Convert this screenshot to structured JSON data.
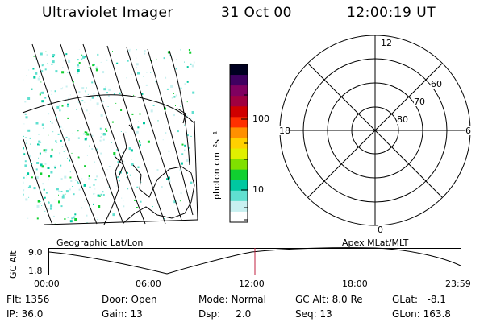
{
  "header": {
    "title": "Ultraviolet Imager",
    "date": "31 Oct 00",
    "time": "12:00:19 UT"
  },
  "colorbar": {
    "unit_label": "photon cm⁻²s⁻¹",
    "ticks": [
      {
        "label": "100",
        "value": 100
      },
      {
        "label": "10",
        "value": 10
      }
    ],
    "colors": [
      "#ffffff",
      "#c8f0f0",
      "#60e0d0",
      "#00c8a0",
      "#10d030",
      "#80e000",
      "#e0f000",
      "#ffd000",
      "#ff9000",
      "#ff3000",
      "#d00000",
      "#a00040",
      "#800060",
      "#400060",
      "#000020"
    ]
  },
  "polar_plot": {
    "mlt_labels": {
      "top": "12",
      "left": "18",
      "right": "6",
      "bottom": "0"
    },
    "lat_labels": [
      "60",
      "70",
      "80"
    ]
  },
  "timeline": {
    "left_label": "Geographic Lat/Lon",
    "right_label": "Apex MLat/MLT",
    "y_axis_label": "GC Alt",
    "y_ticks": [
      "9.0",
      "1.8"
    ],
    "x_ticks": [
      "00:00",
      "06:00",
      "12:00",
      "18:00",
      "23:59"
    ],
    "current_time_marker": "12:00",
    "marker_color": "#c02040"
  },
  "info": {
    "row1": {
      "flt": "Flt: 1356",
      "door": "Door: Open",
      "mode": "Mode: Normal",
      "gcalt": "GC Alt: 8.0 Re",
      "glat": "GLat:   -8.1"
    },
    "row2": {
      "ip": "IP: 36.0",
      "gain": "Gain: 13",
      "dsp": "Dsp:     2.0",
      "seq": "Seq: 13",
      "glon": "GLon: 163.8"
    }
  }
}
